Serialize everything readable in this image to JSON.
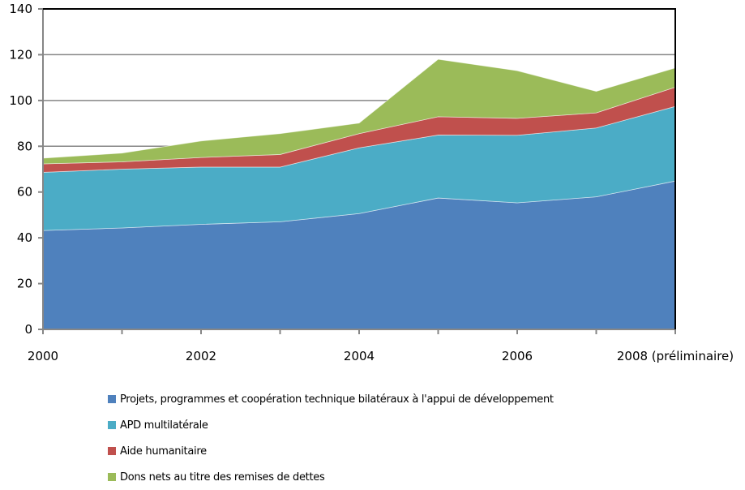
{
  "chart_data": {
    "type": "area",
    "stacked": true,
    "title": "",
    "xlabel": "",
    "ylabel": "",
    "x": [
      2000,
      2001,
      2002,
      2003,
      2004,
      2005,
      2006,
      2007,
      2008
    ],
    "x_tick_labels": [
      {
        "x": 2000,
        "label": "2000"
      },
      {
        "x": 2002,
        "label": "2002"
      },
      {
        "x": 2004,
        "label": "2004"
      },
      {
        "x": 2006,
        "label": "2006"
      },
      {
        "x": 2008,
        "label": "2008 (préliminaire)"
      }
    ],
    "ylim": [
      0,
      140
    ],
    "y_ticks": [
      0,
      20,
      40,
      60,
      80,
      100,
      120,
      140
    ],
    "grid": "horizontal",
    "legend_position": "bottom",
    "series": [
      {
        "name": "Projets, programmes et coopération technique bilatéraux à l'appui de développement",
        "color": "#4F81BD",
        "values": [
          43.2,
          44.3,
          45.9,
          47.0,
          50.6,
          57.4,
          55.3,
          57.9,
          64.8
        ]
      },
      {
        "name": "APD multilatérale",
        "color": "#4BACC6",
        "values": [
          25.4,
          25.7,
          25.0,
          23.9,
          28.7,
          27.5,
          29.5,
          30.1,
          32.6
        ]
      },
      {
        "name": "Aide humanitaire",
        "color": "#C0504D",
        "values": [
          3.7,
          3.2,
          4.2,
          5.5,
          6.2,
          8.0,
          7.4,
          6.6,
          8.4
        ]
      },
      {
        "name": "Dons nets au titre des remises de dettes",
        "color": "#9BBB59",
        "values": [
          2.5,
          3.8,
          7.2,
          9.1,
          4.6,
          25.1,
          20.8,
          9.4,
          8.4
        ]
      }
    ]
  }
}
